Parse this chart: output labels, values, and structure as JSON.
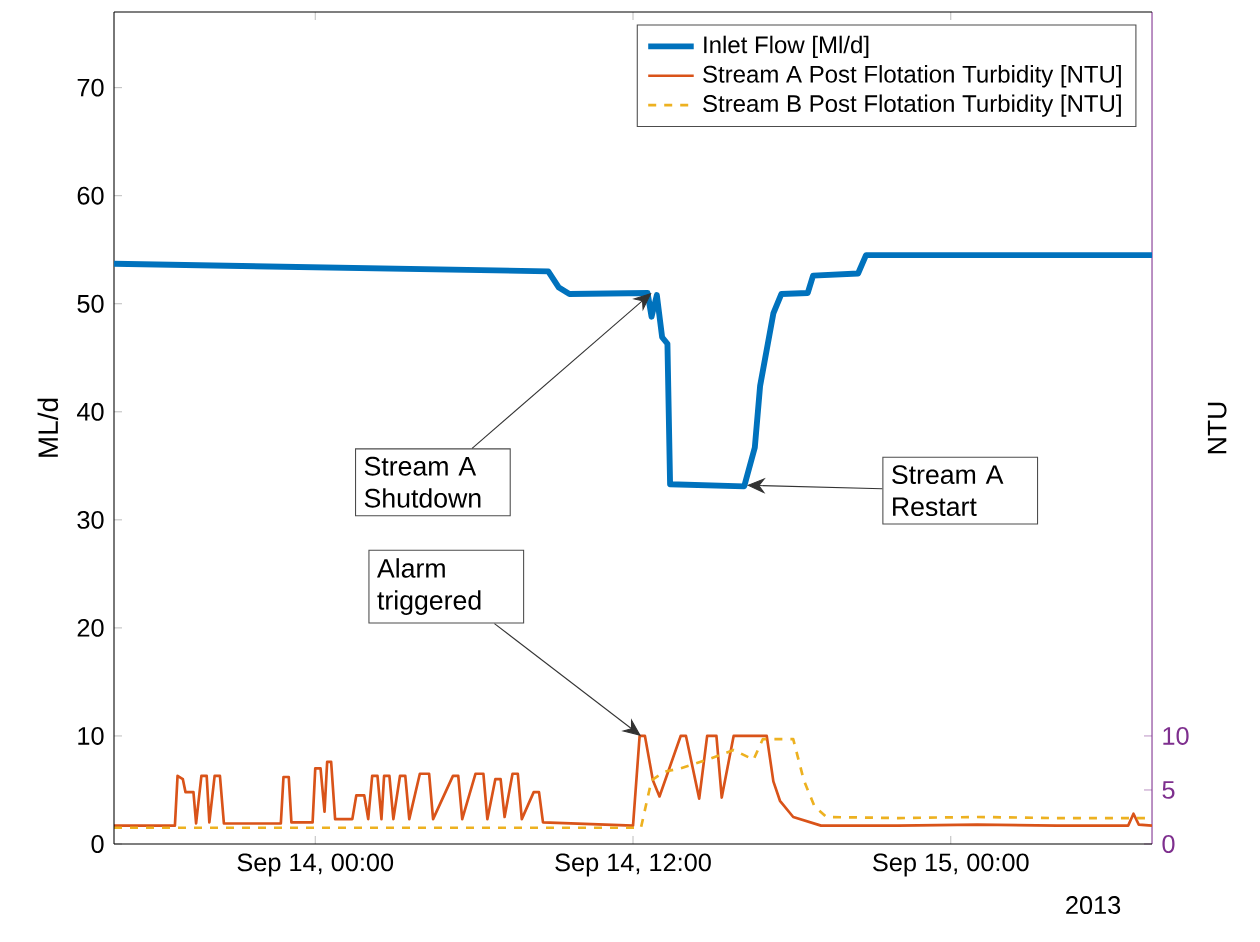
{
  "chart_data": {
    "type": "line",
    "ylabel": "ML/d",
    "y2label": "NTU",
    "xlim": [
      "2013-09-13T16:24",
      "2013-09-15T07:36"
    ],
    "ylim": [
      0,
      77
    ],
    "y2lim": [
      0,
      77
    ],
    "xticks": [
      {
        "value": "2013-09-14T00:00",
        "label": "Sep 14, 00:00"
      },
      {
        "value": "2013-09-14T12:00",
        "label": "Sep 14, 12:00"
      },
      {
        "value": "2013-09-15T00:00",
        "label": "Sep 15, 00:00"
      }
    ],
    "yticks": [
      0,
      10,
      20,
      30,
      40,
      50,
      60,
      70
    ],
    "y2ticks": [
      0,
      5,
      10
    ],
    "legend": "top right",
    "series": [
      {
        "name": "Inlet Flow [Ml/d]",
        "color": "#0072bd",
        "axis": "y",
        "line_style": "solid",
        "x": [
          "2013-09-13T16:24",
          "2013-09-14T08:48",
          "2013-09-14T09:12",
          "2013-09-14T09:36",
          "2013-09-14T12:33",
          "2013-09-14T12:42",
          "2013-09-14T12:54",
          "2013-09-14T13:06",
          "2013-09-14T13:18",
          "2013-09-14T13:24",
          "2013-09-14T16:12",
          "2013-09-14T16:36",
          "2013-09-14T16:48",
          "2013-09-14T17:18",
          "2013-09-14T17:36",
          "2013-09-14T18:36",
          "2013-09-14T18:48",
          "2013-09-14T20:30",
          "2013-09-14T20:48",
          "2013-09-15T07:36"
        ],
        "values": [
          53.7,
          53.0,
          51.5,
          50.9,
          51.0,
          48.8,
          50.8,
          46.9,
          46.3,
          33.3,
          33.1,
          36.7,
          42.4,
          49.1,
          50.9,
          51.0,
          52.6,
          52.8,
          54.5,
          54.5
        ]
      },
      {
        "name": "Stream A Post Flotation Turbidity [NTU]",
        "color": "#d95319",
        "axis": "y2",
        "line_style": "solid",
        "x": [
          "2013-09-13T16:24",
          "2013-09-13T18:42",
          "2013-09-13T18:48",
          "2013-09-13T19:00",
          "2013-09-13T19:06",
          "2013-09-13T19:24",
          "2013-09-13T19:30",
          "2013-09-13T19:42",
          "2013-09-13T19:54",
          "2013-09-13T20:00",
          "2013-09-13T20:12",
          "2013-09-13T20:24",
          "2013-09-13T20:33",
          "2013-09-13T22:42",
          "2013-09-13T22:48",
          "2013-09-13T23:00",
          "2013-09-13T23:06",
          "2013-09-13T23:54",
          "2013-09-14T00:00",
          "2013-09-14T00:12",
          "2013-09-14T00:21",
          "2013-09-14T00:27",
          "2013-09-14T00:36",
          "2013-09-14T00:45",
          "2013-09-14T01:24",
          "2013-09-14T01:33",
          "2013-09-14T01:51",
          "2013-09-14T02:00",
          "2013-09-14T02:09",
          "2013-09-14T02:21",
          "2013-09-14T02:30",
          "2013-09-14T02:36",
          "2013-09-14T02:48",
          "2013-09-14T02:57",
          "2013-09-14T03:12",
          "2013-09-14T03:24",
          "2013-09-14T03:33",
          "2013-09-14T03:57",
          "2013-09-14T04:18",
          "2013-09-14T04:27",
          "2013-09-14T05:12",
          "2013-09-14T05:24",
          "2013-09-14T05:33",
          "2013-09-14T06:03",
          "2013-09-14T06:21",
          "2013-09-14T06:30",
          "2013-09-14T06:48",
          "2013-09-14T07:00",
          "2013-09-14T07:09",
          "2013-09-14T07:27",
          "2013-09-14T07:39",
          "2013-09-14T07:48",
          "2013-09-14T08:15",
          "2013-09-14T08:27",
          "2013-09-14T08:36",
          "2013-09-14T12:00",
          "2013-09-14T12:15",
          "2013-09-14T12:27",
          "2013-09-14T12:45",
          "2013-09-14T13:00",
          "2013-09-14T13:48",
          "2013-09-14T14:00",
          "2013-09-14T14:30",
          "2013-09-14T14:48",
          "2013-09-14T15:09",
          "2013-09-14T15:21",
          "2013-09-14T15:48",
          "2013-09-14T17:03",
          "2013-09-14T17:18",
          "2013-09-14T17:33",
          "2013-09-14T18:03",
          "2013-09-14T19:06",
          "2013-09-14T22:00",
          "2013-09-15T01:00",
          "2013-09-15T04:00",
          "2013-09-15T06:42",
          "2013-09-15T06:54",
          "2013-09-15T07:06",
          "2013-09-15T07:36"
        ],
        "values": [
          1.7,
          1.7,
          6.3,
          6.0,
          4.8,
          4.8,
          1.9,
          6.3,
          6.3,
          2.0,
          6.3,
          6.3,
          1.9,
          1.9,
          6.2,
          6.2,
          2.0,
          2.0,
          7.0,
          7.0,
          3.0,
          7.6,
          7.6,
          2.3,
          2.3,
          4.5,
          4.5,
          2.3,
          6.3,
          6.3,
          2.3,
          6.3,
          6.3,
          2.3,
          6.3,
          6.3,
          2.3,
          6.5,
          6.5,
          2.3,
          6.3,
          6.3,
          2.3,
          6.5,
          6.5,
          2.3,
          6.0,
          6.0,
          2.5,
          6.5,
          6.5,
          2.3,
          4.8,
          4.8,
          2.0,
          1.7,
          10.0,
          10.0,
          5.9,
          4.4,
          10.0,
          10.0,
          4.2,
          10.0,
          10.0,
          4.3,
          10.0,
          10.0,
          5.8,
          4.0,
          2.5,
          1.7,
          1.7,
          1.8,
          1.7,
          1.7,
          2.8,
          1.8,
          1.7
        ]
      },
      {
        "name": "Stream B Post Flotation Turbidity [NTU]",
        "color": "#edb120",
        "axis": "y2",
        "line_style": "dashed",
        "x": [
          "2013-09-13T16:24",
          "2013-09-14T12:18",
          "2013-09-14T12:42",
          "2013-09-14T13:12",
          "2013-09-14T13:48",
          "2013-09-14T14:48",
          "2013-09-14T15:48",
          "2013-09-14T16:33",
          "2013-09-14T16:54",
          "2013-09-14T18:03",
          "2013-09-14T18:27",
          "2013-09-14T18:51",
          "2013-09-14T19:18",
          "2013-09-14T22:00",
          "2013-09-15T01:00",
          "2013-09-15T04:00",
          "2013-09-15T07:36"
        ],
        "values": [
          1.5,
          1.5,
          5.9,
          6.7,
          7.0,
          7.8,
          8.7,
          7.8,
          9.7,
          9.7,
          5.9,
          3.5,
          2.5,
          2.4,
          2.5,
          2.4,
          2.4
        ]
      }
    ],
    "annotations": [
      {
        "text": "Stream A Shutdown",
        "x": "2013-09-14T12:42",
        "y": 51.0
      },
      {
        "text": "Stream A Restart",
        "x": "2013-09-14T16:18",
        "y": 33.2
      },
      {
        "text": "Alarm triggered",
        "x": "2013-09-14T12:18",
        "y": 10.0
      },
      "2013"
    ]
  }
}
